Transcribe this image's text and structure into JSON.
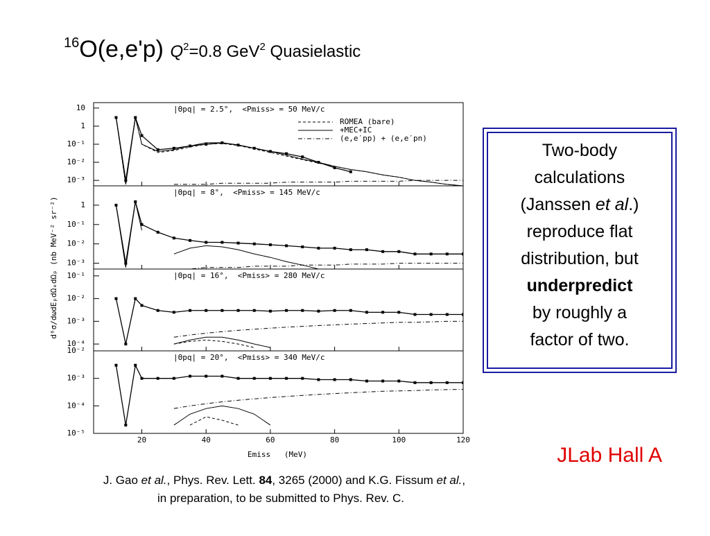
{
  "title": {
    "iso": "16",
    "reaction": "O(e,e'p) ",
    "q": "Q",
    "q_exp": "2",
    "q_val": "=0.8 GeV",
    "gev_exp": "2",
    "rest": " Quasielastic"
  },
  "y_axis_label": "d⁶σ/dωdEₚdΩₑdΩₚ (nb MeV⁻² sr⁻²)",
  "chart_data": [
    {
      "type": "line",
      "title": "|Θpq| = 2.5°,  <Pmiss> = 50 MeV/c",
      "log_scale": true,
      "x": [
        10,
        12,
        15,
        18,
        20,
        25,
        30,
        35,
        40,
        45,
        50,
        55,
        60,
        65,
        70,
        75,
        80,
        85,
        90,
        95,
        100,
        105,
        110,
        115,
        120
      ],
      "xlim": [
        5,
        120
      ],
      "xticks": [
        20,
        40,
        60,
        80,
        100,
        120
      ],
      "ylim": [
        0.0005,
        20
      ],
      "yticks": [
        {
          "value": 10,
          "label": "10"
        },
        {
          "value": 1,
          "label": "1"
        },
        {
          "value": 0.1,
          "label": "10⁻¹"
        },
        {
          "value": 0.01,
          "label": "10⁻²"
        },
        {
          "value": 0.001,
          "label": "10⁻³"
        }
      ],
      "series": [
        {
          "style": "markers",
          "color": "#000000",
          "values": [
            null,
            3,
            0.001,
            3,
            0.3,
            0.05,
            0.06,
            0.08,
            0.1,
            0.12,
            0.09,
            0.06,
            0.04,
            0.03,
            0.02,
            0.01,
            0.005,
            0.003,
            null,
            null,
            null,
            null,
            null,
            null,
            null
          ]
        },
        {
          "name": "ROMEA (bare)",
          "style": "dashed",
          "color": "#000000",
          "values": [
            null,
            3,
            0.0006,
            3,
            0.1,
            0.035,
            0.045,
            0.07,
            0.1,
            0.11,
            0.085,
            0.055,
            0.035,
            0.022,
            0.014,
            0.009,
            0.006,
            0.004,
            0.003,
            0.002,
            0.0015,
            0.001,
            0.0008,
            0.0006,
            0.0005
          ]
        },
        {
          "name": "+MEC+IC",
          "style": "solid",
          "color": "#000000",
          "values": [
            null,
            3,
            0.0006,
            3,
            0.1,
            0.04,
            0.05,
            0.08,
            0.12,
            0.12,
            0.09,
            0.06,
            0.04,
            0.025,
            0.015,
            0.01,
            0.006,
            0.004,
            0.003,
            0.002,
            0.0015,
            0.001,
            0.0008,
            0.0006,
            0.0005
          ]
        },
        {
          "name": "(e,e′pp) + (e,e′pn)",
          "style": "dashdot",
          "color": "#000000",
          "values": [
            null,
            null,
            null,
            null,
            null,
            null,
            0.0006,
            0.0006,
            0.0006,
            0.0007,
            0.0007,
            0.0007,
            0.0007,
            0.0008,
            0.0008,
            0.0008,
            0.0008,
            0.0009,
            0.0009,
            0.0009,
            0.0009,
            0.001,
            0.001,
            0.001,
            0.001
          ]
        }
      ]
    },
    {
      "type": "line",
      "title": "|Θpq| = 8°,  <Pmiss> = 145 MeV/c",
      "log_scale": true,
      "x": [
        10,
        12,
        15,
        18,
        20,
        25,
        30,
        35,
        40,
        45,
        50,
        55,
        60,
        65,
        70,
        75,
        80,
        85,
        90,
        95,
        100,
        105,
        110,
        115,
        120
      ],
      "xlim": [
        5,
        120
      ],
      "xticks": [
        20,
        40,
        60,
        80,
        100,
        120
      ],
      "ylim": [
        0.0005,
        10
      ],
      "yticks": [
        {
          "value": 1,
          "label": "1"
        },
        {
          "value": 0.1,
          "label": "10⁻¹"
        },
        {
          "value": 0.01,
          "label": "10⁻²"
        },
        {
          "value": 0.001,
          "label": "10⁻³"
        }
      ],
      "series": [
        {
          "style": "markers",
          "color": "#000000",
          "values": [
            null,
            1,
            0.001,
            1.5,
            0.1,
            0.04,
            0.02,
            0.015,
            0.012,
            0.012,
            0.011,
            0.01,
            0.009,
            0.008,
            0.007,
            0.006,
            0.006,
            0.005,
            0.005,
            0.004,
            0.004,
            0.003,
            0.003,
            0.003,
            0.003
          ]
        },
        {
          "style": "solid",
          "color": "#000000",
          "values": [
            null,
            1,
            0.0006,
            1.5,
            0.05,
            null,
            0.003,
            0.006,
            0.008,
            0.007,
            0.005,
            0.003,
            0.002,
            0.0012,
            0.0008,
            0.0005,
            null,
            null,
            null,
            null,
            null,
            null,
            null,
            null,
            null
          ]
        },
        {
          "style": "dashdot",
          "color": "#000000",
          "values": [
            null,
            null,
            null,
            null,
            null,
            null,
            0.0005,
            0.0005,
            0.0006,
            0.0006,
            0.0006,
            0.0007,
            0.0007,
            0.0007,
            0.0008,
            0.0008,
            0.0008,
            0.0009,
            0.0009,
            0.0009,
            0.001,
            0.001,
            0.001,
            0.001,
            0.001
          ]
        }
      ]
    },
    {
      "type": "line",
      "title": "|Θpq| = 16°,  <Pmiss> = 280 MeV/c",
      "log_scale": true,
      "x": [
        10,
        12,
        15,
        18,
        20,
        25,
        30,
        35,
        40,
        45,
        50,
        55,
        60,
        65,
        70,
        75,
        80,
        85,
        90,
        95,
        100,
        105,
        110,
        115,
        120
      ],
      "xlim": [
        5,
        120
      ],
      "xticks": [
        20,
        40,
        60,
        80,
        100,
        120
      ],
      "ylim": [
        5e-05,
        0.2
      ],
      "yticks": [
        {
          "value": 0.1,
          "label": "10⁻¹"
        },
        {
          "value": 0.01,
          "label": "10⁻²"
        },
        {
          "value": 0.001,
          "label": "10⁻³"
        },
        {
          "value": 0.0001,
          "label": "10⁻⁴"
        }
      ],
      "series": [
        {
          "style": "markers",
          "color": "#000000",
          "values": [
            null,
            0.01,
            0.0001,
            0.01,
            0.005,
            0.003,
            0.0025,
            0.003,
            0.003,
            0.003,
            0.003,
            0.003,
            0.0028,
            0.003,
            0.003,
            0.0028,
            0.003,
            0.003,
            0.0025,
            0.0025,
            0.0025,
            0.002,
            0.002,
            0.002,
            0.002
          ]
        },
        {
          "style": "solid",
          "color": "#000000",
          "values": [
            null,
            null,
            null,
            null,
            null,
            null,
            0.0001,
            0.00015,
            0.0002,
            0.0002,
            0.00015,
            0.0001,
            7e-05,
            null,
            null,
            null,
            null,
            null,
            null,
            null,
            null,
            null,
            null,
            null,
            null
          ]
        },
        {
          "style": "dashed",
          "color": "#000000",
          "values": [
            null,
            null,
            null,
            null,
            null,
            null,
            0.0001,
            0.00013,
            0.00015,
            0.00013,
            0.0001,
            7e-05,
            null,
            null,
            null,
            null,
            null,
            null,
            null,
            null,
            null,
            null,
            null,
            null,
            null
          ]
        },
        {
          "style": "dashdot",
          "color": "#000000",
          "values": [
            null,
            null,
            null,
            null,
            null,
            null,
            0.0002,
            0.00025,
            0.0003,
            0.00035,
            0.0004,
            0.00045,
            0.0005,
            0.00055,
            0.0006,
            0.00065,
            0.0007,
            0.00075,
            0.0008,
            0.00085,
            0.0009,
            0.0009,
            0.00095,
            0.001,
            0.001
          ]
        }
      ]
    },
    {
      "type": "line",
      "title": "|Θpq| = 20°,  <Pmiss> = 340 MeV/c",
      "log_scale": true,
      "x": [
        10,
        12,
        15,
        18,
        20,
        25,
        30,
        35,
        40,
        45,
        50,
        55,
        60,
        65,
        70,
        75,
        80,
        85,
        90,
        95,
        100,
        105,
        110,
        115,
        120
      ],
      "xlim": [
        5,
        120
      ],
      "xticks": [
        20,
        40,
        60,
        80,
        100,
        120
      ],
      "ylim": [
        1e-05,
        0.01
      ],
      "yticks": [
        {
          "value": 0.01,
          "label": "10⁻²"
        },
        {
          "value": 0.001,
          "label": "10⁻³"
        },
        {
          "value": 0.0001,
          "label": "10⁻⁴"
        },
        {
          "value": 1e-05,
          "label": "10⁻⁵"
        }
      ],
      "x_label": "Emiss   (MeV)",
      "series": [
        {
          "style": "markers",
          "color": "#000000",
          "values": [
            null,
            0.003,
            2e-05,
            0.003,
            0.001,
            0.001,
            0.001,
            0.0012,
            0.0012,
            0.0012,
            0.001,
            0.001,
            0.001,
            0.001,
            0.001,
            0.0009,
            0.0009,
            0.0009,
            0.0008,
            0.0008,
            0.0008,
            0.0007,
            0.0007,
            0.0007,
            0.0007
          ]
        },
        {
          "style": "solid",
          "color": "#000000",
          "values": [
            null,
            null,
            null,
            null,
            null,
            null,
            2e-05,
            5e-05,
            8e-05,
            0.0001,
            8e-05,
            5e-05,
            2e-05,
            null,
            null,
            null,
            null,
            null,
            null,
            null,
            null,
            null,
            null,
            null,
            null
          ]
        },
        {
          "style": "dashed",
          "color": "#000000",
          "values": [
            null,
            null,
            null,
            null,
            null,
            null,
            null,
            2e-05,
            4e-05,
            3e-05,
            2e-05,
            null,
            null,
            null,
            null,
            null,
            null,
            null,
            null,
            null,
            null,
            null,
            null,
            null,
            null
          ]
        },
        {
          "style": "dashdot",
          "color": "#000000",
          "values": [
            null,
            null,
            null,
            null,
            null,
            null,
            8e-05,
            0.0001,
            0.00012,
            0.00014,
            0.00016,
            0.00018,
            0.0002,
            0.00022,
            0.00024,
            0.00026,
            0.00028,
            0.0003,
            0.00032,
            0.00034,
            0.00035,
            0.00036,
            0.00038,
            0.00039,
            0.0004
          ]
        }
      ]
    }
  ],
  "callout": {
    "l1": "Two-body",
    "l2": "calculations",
    "l3a": "(Janssen ",
    "l3b": "et al",
    "l3c": ".)",
    "l4": "reproduce flat",
    "l5": "distribution, but",
    "l6": "underpredict",
    "l7": "by roughly a",
    "l8": "factor of two."
  },
  "lab": "JLab Hall A",
  "citation": {
    "a": "J. Gao ",
    "b": "et al.",
    "c": ", Phys. Rev. Lett. ",
    "d": "84",
    "e": ", 3265 (2000) and K.G. Fissum ",
    "f": "et al.",
    "g": ",",
    "h": "in preparation, to be submitted to Phys. Rev. C."
  }
}
